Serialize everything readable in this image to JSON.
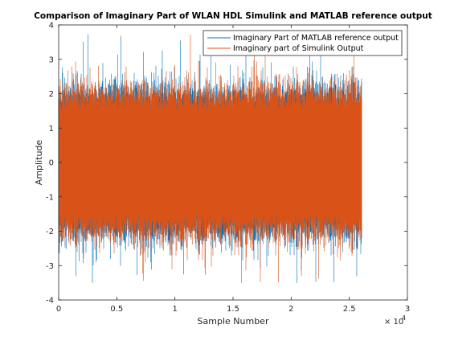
{
  "chart_data": {
    "type": "line",
    "title": "Comparison of Imaginary Part of WLAN HDL Simulink and MATLAB reference output",
    "xlabel": "Sample Number",
    "ylabel": "Amplitude",
    "xlim": [
      0,
      30000
    ],
    "ylim": [
      -4,
      4
    ],
    "x_exponent_label": "× 10",
    "x_exponent": "4",
    "x_ticks": [
      0,
      5000,
      10000,
      15000,
      20000,
      25000,
      30000
    ],
    "x_tick_labels": [
      "0",
      "0.5",
      "1",
      "1.5",
      "2",
      "2.5",
      "3"
    ],
    "y_ticks": [
      -4,
      -3,
      -2,
      -1,
      0,
      1,
      2,
      3,
      4
    ],
    "y_tick_labels": [
      "-4",
      "-3",
      "-2",
      "-1",
      "0",
      "1",
      "2",
      "3",
      "4"
    ],
    "grid": false,
    "legend_position": "top-right",
    "x_range_of_data": [
      0,
      26080
    ],
    "series": [
      {
        "name": "Imaginary Part of MATLAB reference output",
        "color": "#0072BD",
        "envelope": {
          "typical_max": 2.0,
          "typical_min": -2.0,
          "peak_max": 3.8,
          "peak_min": -3.55
        }
      },
      {
        "name": "Imaginary part of Simulink Output",
        "color": "#D95319",
        "envelope": {
          "typical_max": 2.0,
          "typical_min": -2.0,
          "peak_max": 3.8,
          "peak_min": -3.55
        }
      }
    ]
  }
}
